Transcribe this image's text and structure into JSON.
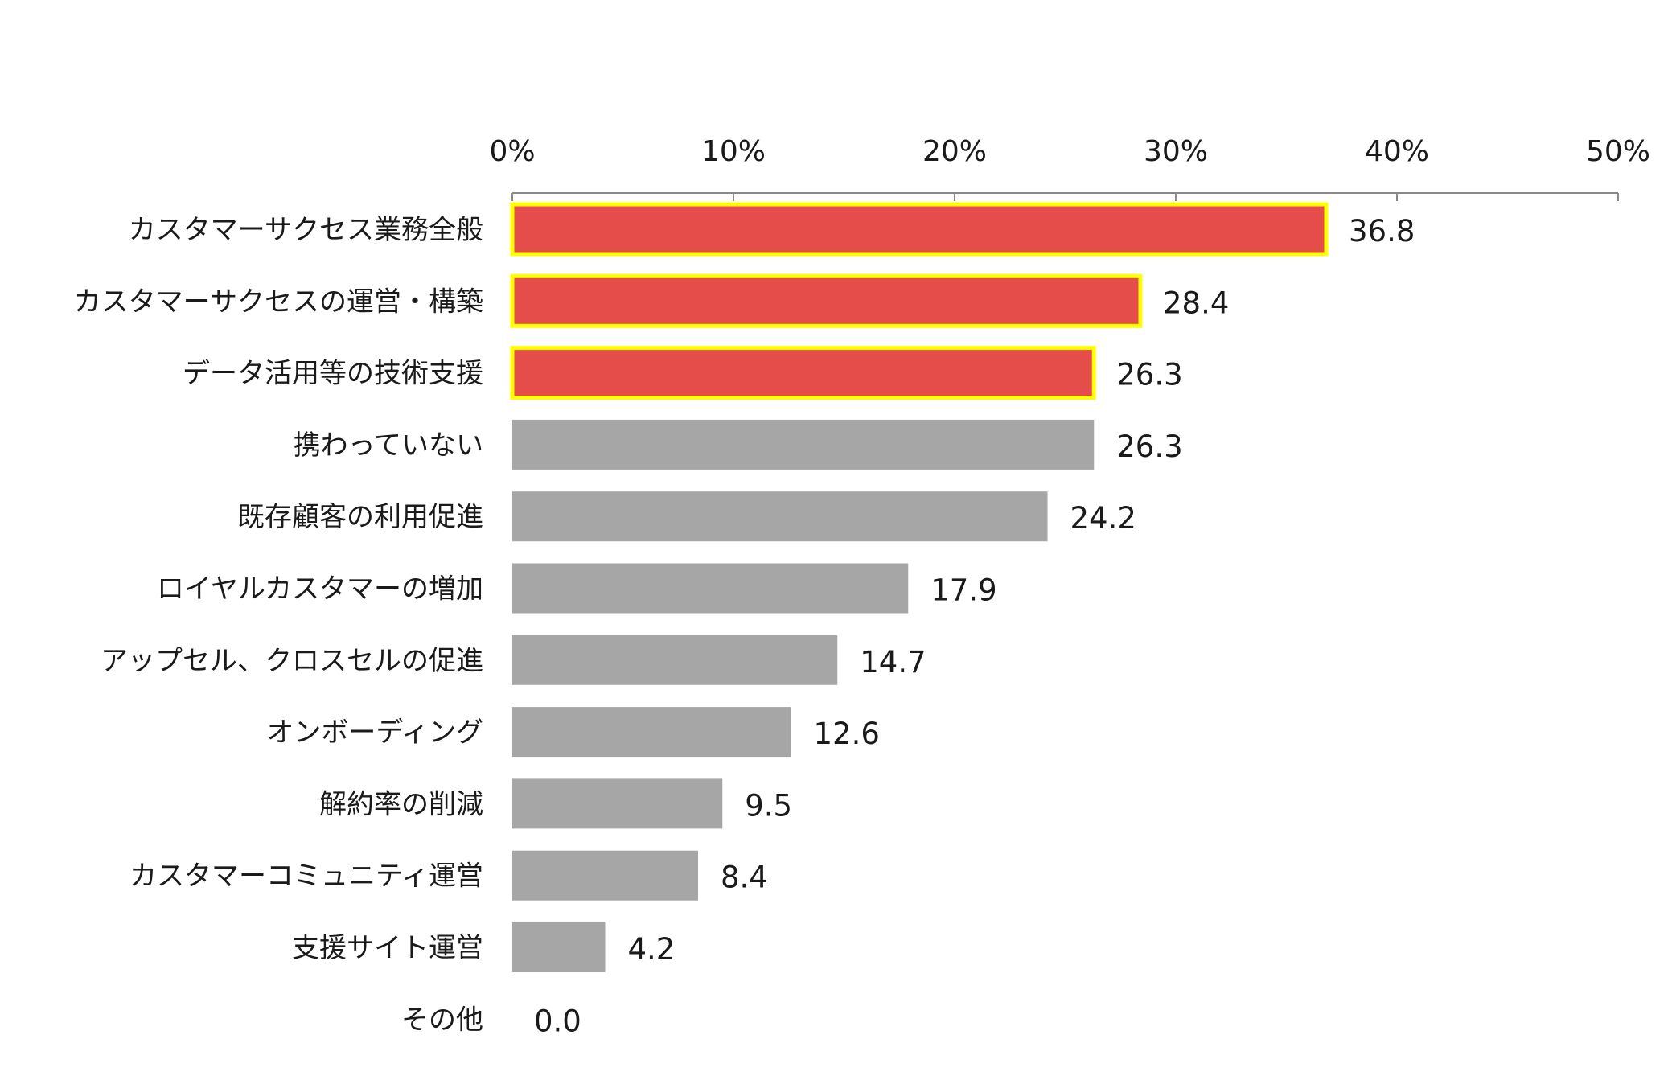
{
  "chart_data": {
    "type": "bar",
    "orientation": "horizontal",
    "title": "",
    "xlabel": "",
    "ylabel": "",
    "xlim": [
      0,
      50
    ],
    "x_ticks": [
      "0%",
      "10%",
      "20%",
      "30%",
      "40%",
      "50%"
    ],
    "x_axis_position": "top",
    "grid": false,
    "legend": "none",
    "categories": [
      "カスタマーサクセス業務全般",
      "カスタマーサクセスの運営・構築",
      "データ活用等の技術支援",
      "携わっていない",
      "既存顧客の利用促進",
      "ロイヤルカスタマーの増加",
      "アップセル、クロスセルの促進",
      "オンボーディング",
      "解約率の削減",
      "カスタマーコミュニティ運営",
      "支援サイト運営",
      "その他"
    ],
    "values": [
      36.8,
      28.4,
      26.3,
      26.3,
      24.2,
      17.9,
      14.7,
      12.6,
      9.5,
      8.4,
      4.2,
      0.0
    ],
    "value_labels": [
      "36.8",
      "28.4",
      "26.3",
      "26.3",
      "24.2",
      "17.9",
      "14.7",
      "12.6",
      "9.5",
      "8.4",
      "4.2",
      "0.0"
    ],
    "highlighted": [
      true,
      true,
      true,
      false,
      false,
      false,
      false,
      false,
      false,
      false,
      false,
      false
    ],
    "colors": {
      "highlight_fill": "#E54D4A",
      "highlight_border": "#FFFF00",
      "default_fill": "#A6A6A6",
      "axis": "#888888",
      "text": "#1a1a1a"
    }
  }
}
